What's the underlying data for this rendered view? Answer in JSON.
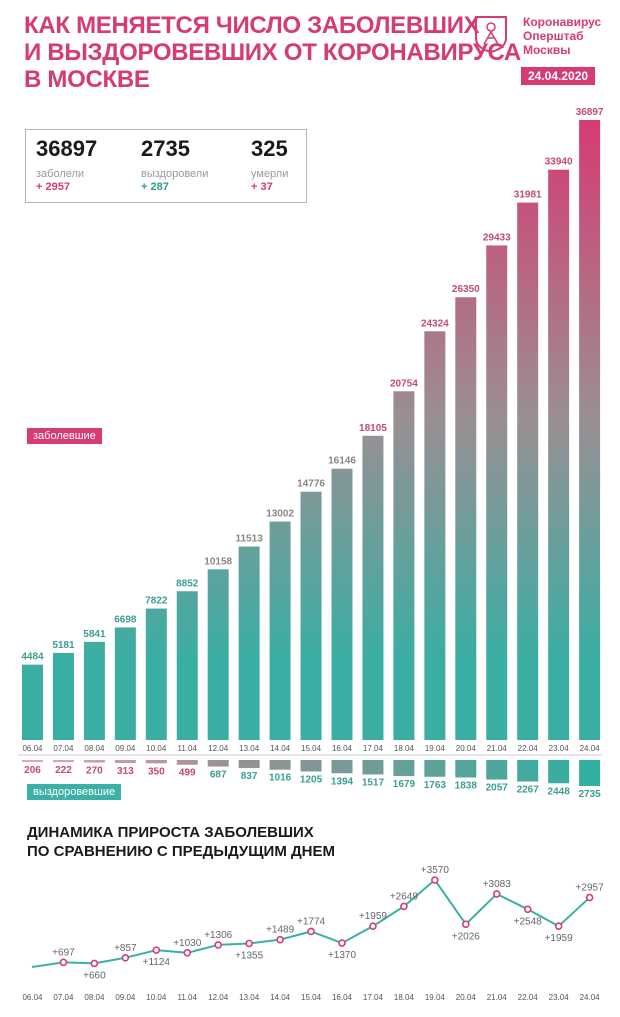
{
  "header": {
    "title_lines": [
      "КАК МЕНЯЕТСЯ ЧИСЛО ЗАБОЛЕВШИХ",
      "И ВЫЗДОРОВЕВШИХ ОТ КОРОНАВИРУСА",
      "В МОСКВЕ"
    ],
    "logo_lines": [
      "Коронавирус",
      "Оперштаб",
      "Москвы"
    ],
    "date": "24.04.2020"
  },
  "stats": {
    "sick": {
      "value": "36897",
      "label": "заболели",
      "delta": "+ 2957"
    },
    "recovered": {
      "value": "2735",
      "label": "выздоровели",
      "delta": "+ 287"
    },
    "died": {
      "value": "325",
      "label": "умерли",
      "delta": "+ 37"
    }
  },
  "legend": {
    "sick": "заболевшие",
    "recovered": "выздоровевшие"
  },
  "subtitle_lines": [
    "ДИНАМИКА ПРИРОСТА ЗАБОЛЕВШИХ",
    "ПО СРАВНЕНИЮ С ПРЕДЫДУЩИМ ДНЕМ"
  ],
  "colors": {
    "pink": "#d63b74",
    "teal": "#3bb1a6",
    "gray_bar": "#9a9a9a"
  },
  "chart_data": [
    {
      "type": "bar",
      "categories": [
        "06.04",
        "07.04",
        "08.04",
        "09.04",
        "10.04",
        "11.04",
        "12.04",
        "13.04",
        "14.04",
        "15.04",
        "16.04",
        "17.04",
        "18.04",
        "19.04",
        "20.04",
        "21.04",
        "22.04",
        "23.04",
        "24.04"
      ],
      "series": [
        {
          "name": "заболевшие",
          "values": [
            4484,
            5181,
            5841,
            6698,
            7822,
            8852,
            10158,
            11513,
            13002,
            14776,
            16146,
            18105,
            20754,
            24324,
            26350,
            29433,
            31981,
            33940,
            36897
          ]
        },
        {
          "name": "выздоровевшие",
          "values": [
            206,
            222,
            270,
            313,
            350,
            499,
            687,
            837,
            1016,
            1205,
            1394,
            1517,
            1679,
            1763,
            1838,
            2057,
            2267,
            2448,
            2735
          ]
        }
      ]
    },
    {
      "type": "line",
      "title": "ДИНАМИКА ПРИРОСТА ЗАБОЛЕВШИХ ПО СРАВНЕНИЮ С ПРЕДЫДУЩИМ ДНЕМ",
      "categories": [
        "06.04",
        "07.04",
        "08.04",
        "09.04",
        "10.04",
        "11.04",
        "12.04",
        "13.04",
        "14.04",
        "15.04",
        "16.04",
        "17.04",
        "18.04",
        "19.04",
        "20.04",
        "21.04",
        "22.04",
        "23.04",
        "24.04"
      ],
      "values": [
        null,
        697,
        660,
        857,
        1124,
        1030,
        1306,
        1355,
        1489,
        1774,
        1370,
        1959,
        2649,
        3570,
        2026,
        3083,
        2548,
        1959,
        2957
      ],
      "labels": [
        null,
        "+697",
        "+660",
        "+857",
        "+1124",
        "+1030",
        "+1306",
        "+1355",
        "+1489",
        "+1774",
        "+1370",
        "+1959",
        "+2649",
        "+3570",
        "+2026",
        "+3083",
        "+2548",
        "+1959",
        "+2957"
      ]
    }
  ]
}
